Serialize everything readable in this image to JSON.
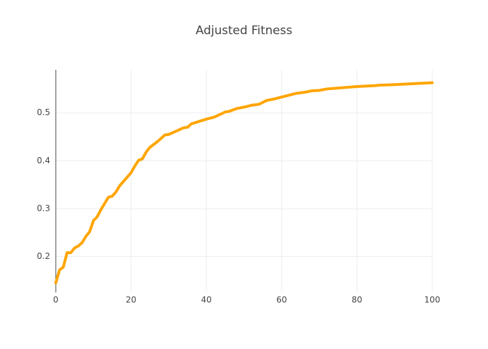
{
  "chart_data": {
    "type": "line",
    "title": "Adjusted Fitness",
    "xlabel": "",
    "ylabel": "",
    "xlim": [
      0,
      100
    ],
    "ylim": [
      0.125,
      0.59
    ],
    "xticks": [
      0,
      20,
      40,
      60,
      80,
      100
    ],
    "xtick_labels": [
      "0",
      "20",
      "40",
      "60",
      "80",
      "100"
    ],
    "yticks": [
      0.2,
      0.3,
      0.4,
      0.5
    ],
    "ytick_labels": [
      "0.2",
      "0.3",
      "0.4",
      "0.5"
    ],
    "grid": true,
    "legend": "none",
    "colors": {
      "line": "#FFA500",
      "grid": "#eeeeee",
      "axis": "#444444",
      "text": "#444444"
    },
    "series": [
      {
        "x": [
          0,
          1,
          2,
          3,
          4,
          5,
          6,
          7,
          8,
          9,
          10,
          11,
          12,
          13,
          14,
          15,
          16,
          17,
          18,
          19,
          20,
          21,
          22,
          23,
          24,
          25,
          26,
          27,
          28,
          29,
          30,
          32,
          34,
          35,
          36,
          38,
          40,
          42,
          44,
          45,
          46,
          48,
          50,
          52,
          53,
          54,
          56,
          58,
          60,
          62,
          64,
          66,
          68,
          70,
          72,
          75,
          80,
          85,
          86,
          90,
          95,
          100
        ],
        "values": [
          0.145,
          0.172,
          0.178,
          0.208,
          0.208,
          0.218,
          0.222,
          0.229,
          0.242,
          0.252,
          0.275,
          0.283,
          0.298,
          0.311,
          0.324,
          0.326,
          0.335,
          0.348,
          0.357,
          0.366,
          0.375,
          0.389,
          0.401,
          0.404,
          0.418,
          0.428,
          0.434,
          0.44,
          0.447,
          0.454,
          0.455,
          0.462,
          0.469,
          0.47,
          0.477,
          0.482,
          0.487,
          0.491,
          0.498,
          0.502,
          0.503,
          0.509,
          0.512,
          0.516,
          0.517,
          0.518,
          0.526,
          0.529,
          0.533,
          0.537,
          0.541,
          0.543,
          0.546,
          0.547,
          0.55,
          0.552,
          0.555,
          0.557,
          0.558,
          0.559,
          0.561,
          0.563
        ]
      }
    ]
  }
}
